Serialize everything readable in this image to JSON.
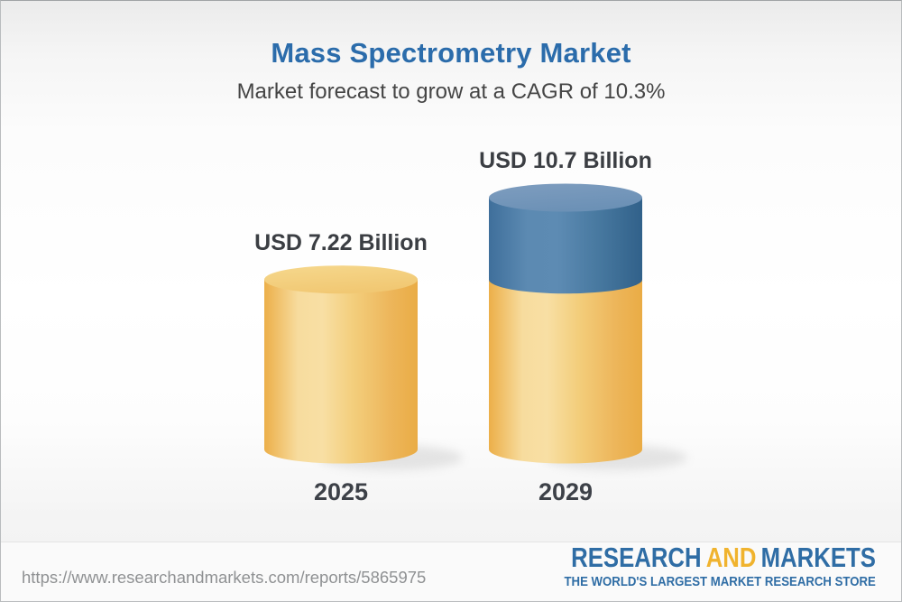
{
  "header": {
    "title": "Mass Spectrometry Market",
    "subtitle": "Market forecast to grow at a CAGR of 10.3%",
    "title_color": "#2b6cab"
  },
  "chart_data": {
    "type": "bar",
    "style": "3d-cylinder",
    "title": "Mass Spectrometry Market",
    "subtitle": "Market forecast to grow at a CAGR of 10.3%",
    "cagr_percent": 10.3,
    "unit": "USD Billion",
    "categories": [
      "2025",
      "2029"
    ],
    "values": [
      7.22,
      10.7
    ],
    "grid": false,
    "axes_visible": false,
    "bars": [
      {
        "year": "2025",
        "label": "USD 7.22 Billion",
        "total": 7.22,
        "segments": [
          {
            "name": "base-2025",
            "value": 7.22,
            "palette": "gold"
          }
        ]
      },
      {
        "year": "2029",
        "label": "USD 10.7 Billion",
        "total": 10.7,
        "segments": [
          {
            "name": "base-2025-equivalent",
            "value": 7.22,
            "palette": "gold"
          },
          {
            "name": "growth-increment",
            "value": 3.48,
            "palette": "blue"
          }
        ]
      }
    ],
    "palette": {
      "gold": "#f0c169",
      "gold_highlight": "#f8dfa4",
      "gold_shadow": "#eaac45",
      "blue": "#4a7aa5",
      "blue_highlight": "#5d8bb3",
      "blue_shadow": "#31618a"
    }
  },
  "footer": {
    "url": "https://www.researchandmarkets.com/reports/5865975",
    "logo": {
      "part1": "RESEARCH",
      "part2": "AND",
      "part3": "MARKETS",
      "tagline": "THE WORLD'S LARGEST MARKET RESEARCH STORE",
      "blue": "#2f6da5",
      "gold": "#f0b32e"
    }
  }
}
